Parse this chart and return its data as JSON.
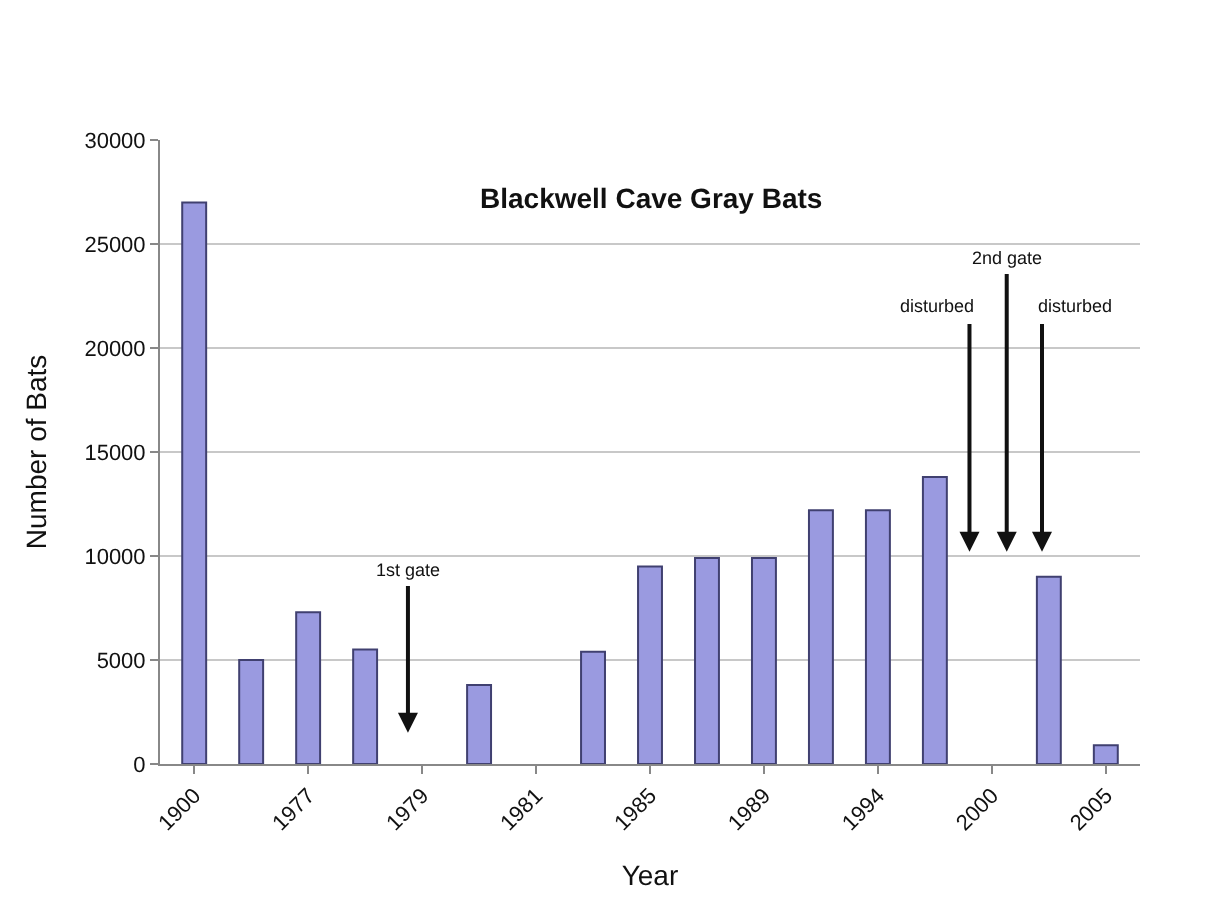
{
  "chart_data": {
    "type": "bar",
    "title": "Blackwell Cave Gray Bats",
    "xlabel": "Year",
    "ylabel": "Number of Bats",
    "categories": [
      "1900",
      null,
      "1977",
      null,
      "1979",
      null,
      "1981",
      null,
      "1985",
      null,
      "1989",
      null,
      "1994",
      null,
      "2000",
      null,
      "2005"
    ],
    "values": [
      27000,
      5000,
      7300,
      5500,
      null,
      3800,
      null,
      5400,
      9500,
      9900,
      9900,
      12200,
      12200,
      13800,
      null,
      9000,
      900
    ],
    "color": "#9a9ae0",
    "ylim": [
      0,
      30000
    ],
    "yticks": [
      0,
      5000,
      10000,
      15000,
      20000,
      25000,
      30000
    ],
    "grid": "y",
    "annotations": [
      "1st gate",
      "disturbed",
      "2nd gate",
      "disturbed"
    ]
  }
}
